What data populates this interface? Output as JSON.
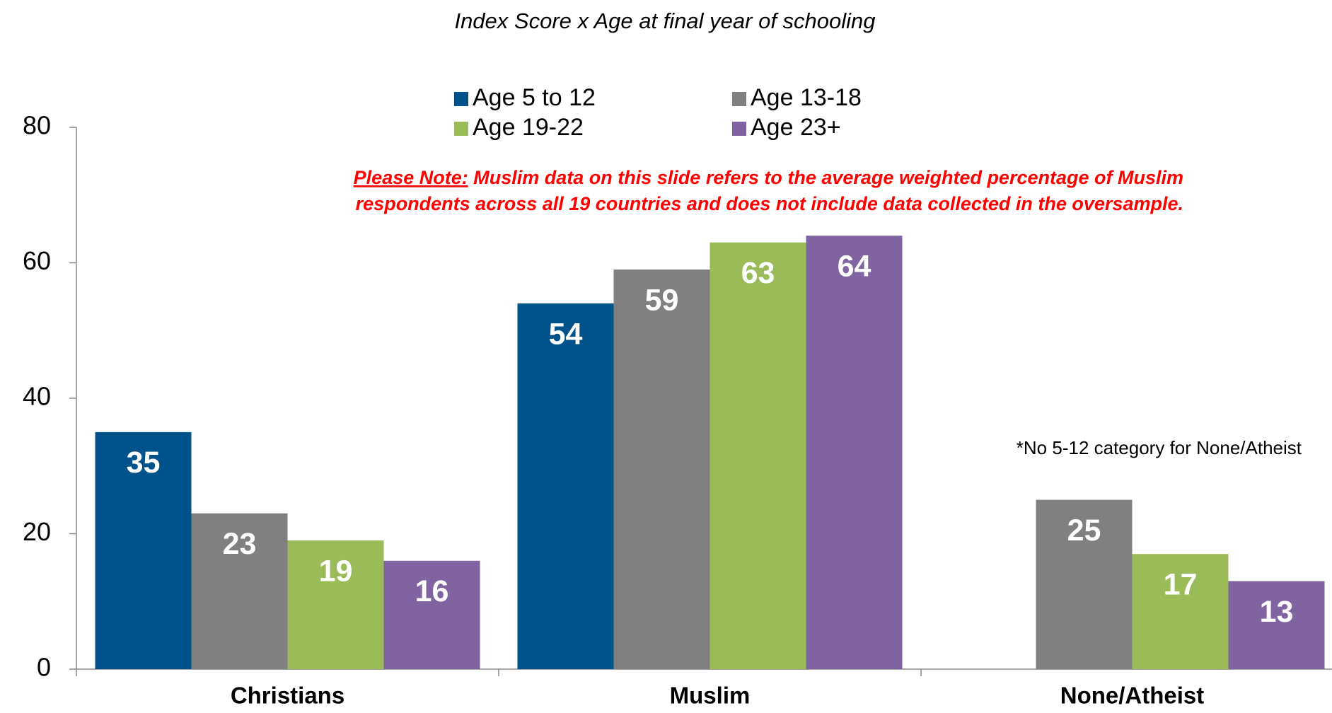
{
  "chart_data": {
    "type": "bar",
    "title": "Index Score x Age at final year of schooling",
    "categories": [
      "Christians",
      "Muslim",
      "None/Atheist"
    ],
    "series": [
      {
        "name": "Age 5 to 12",
        "color": "#00538a",
        "values": [
          35,
          54,
          null
        ]
      },
      {
        "name": "Age 13-18",
        "color": "#808080",
        "values": [
          23,
          59,
          25
        ]
      },
      {
        "name": "Age 19-22",
        "color": "#9bbb59",
        "values": [
          19,
          63,
          17
        ]
      },
      {
        "name": "Age 23+",
        "color": "#8064a2",
        "values": [
          16,
          64,
          13
        ]
      }
    ],
    "ylim": [
      0,
      80
    ],
    "yticks": [
      0,
      20,
      40,
      60,
      80
    ],
    "grid": false,
    "note": {
      "label": "Please Note:",
      "lines": [
        "Muslim data on this slide refers to the average weighted percentage of Muslim",
        "respondents across all 19 countries and does not include data collected in the oversample."
      ]
    },
    "footnote": "*No 5-12 category for None/Atheist"
  }
}
